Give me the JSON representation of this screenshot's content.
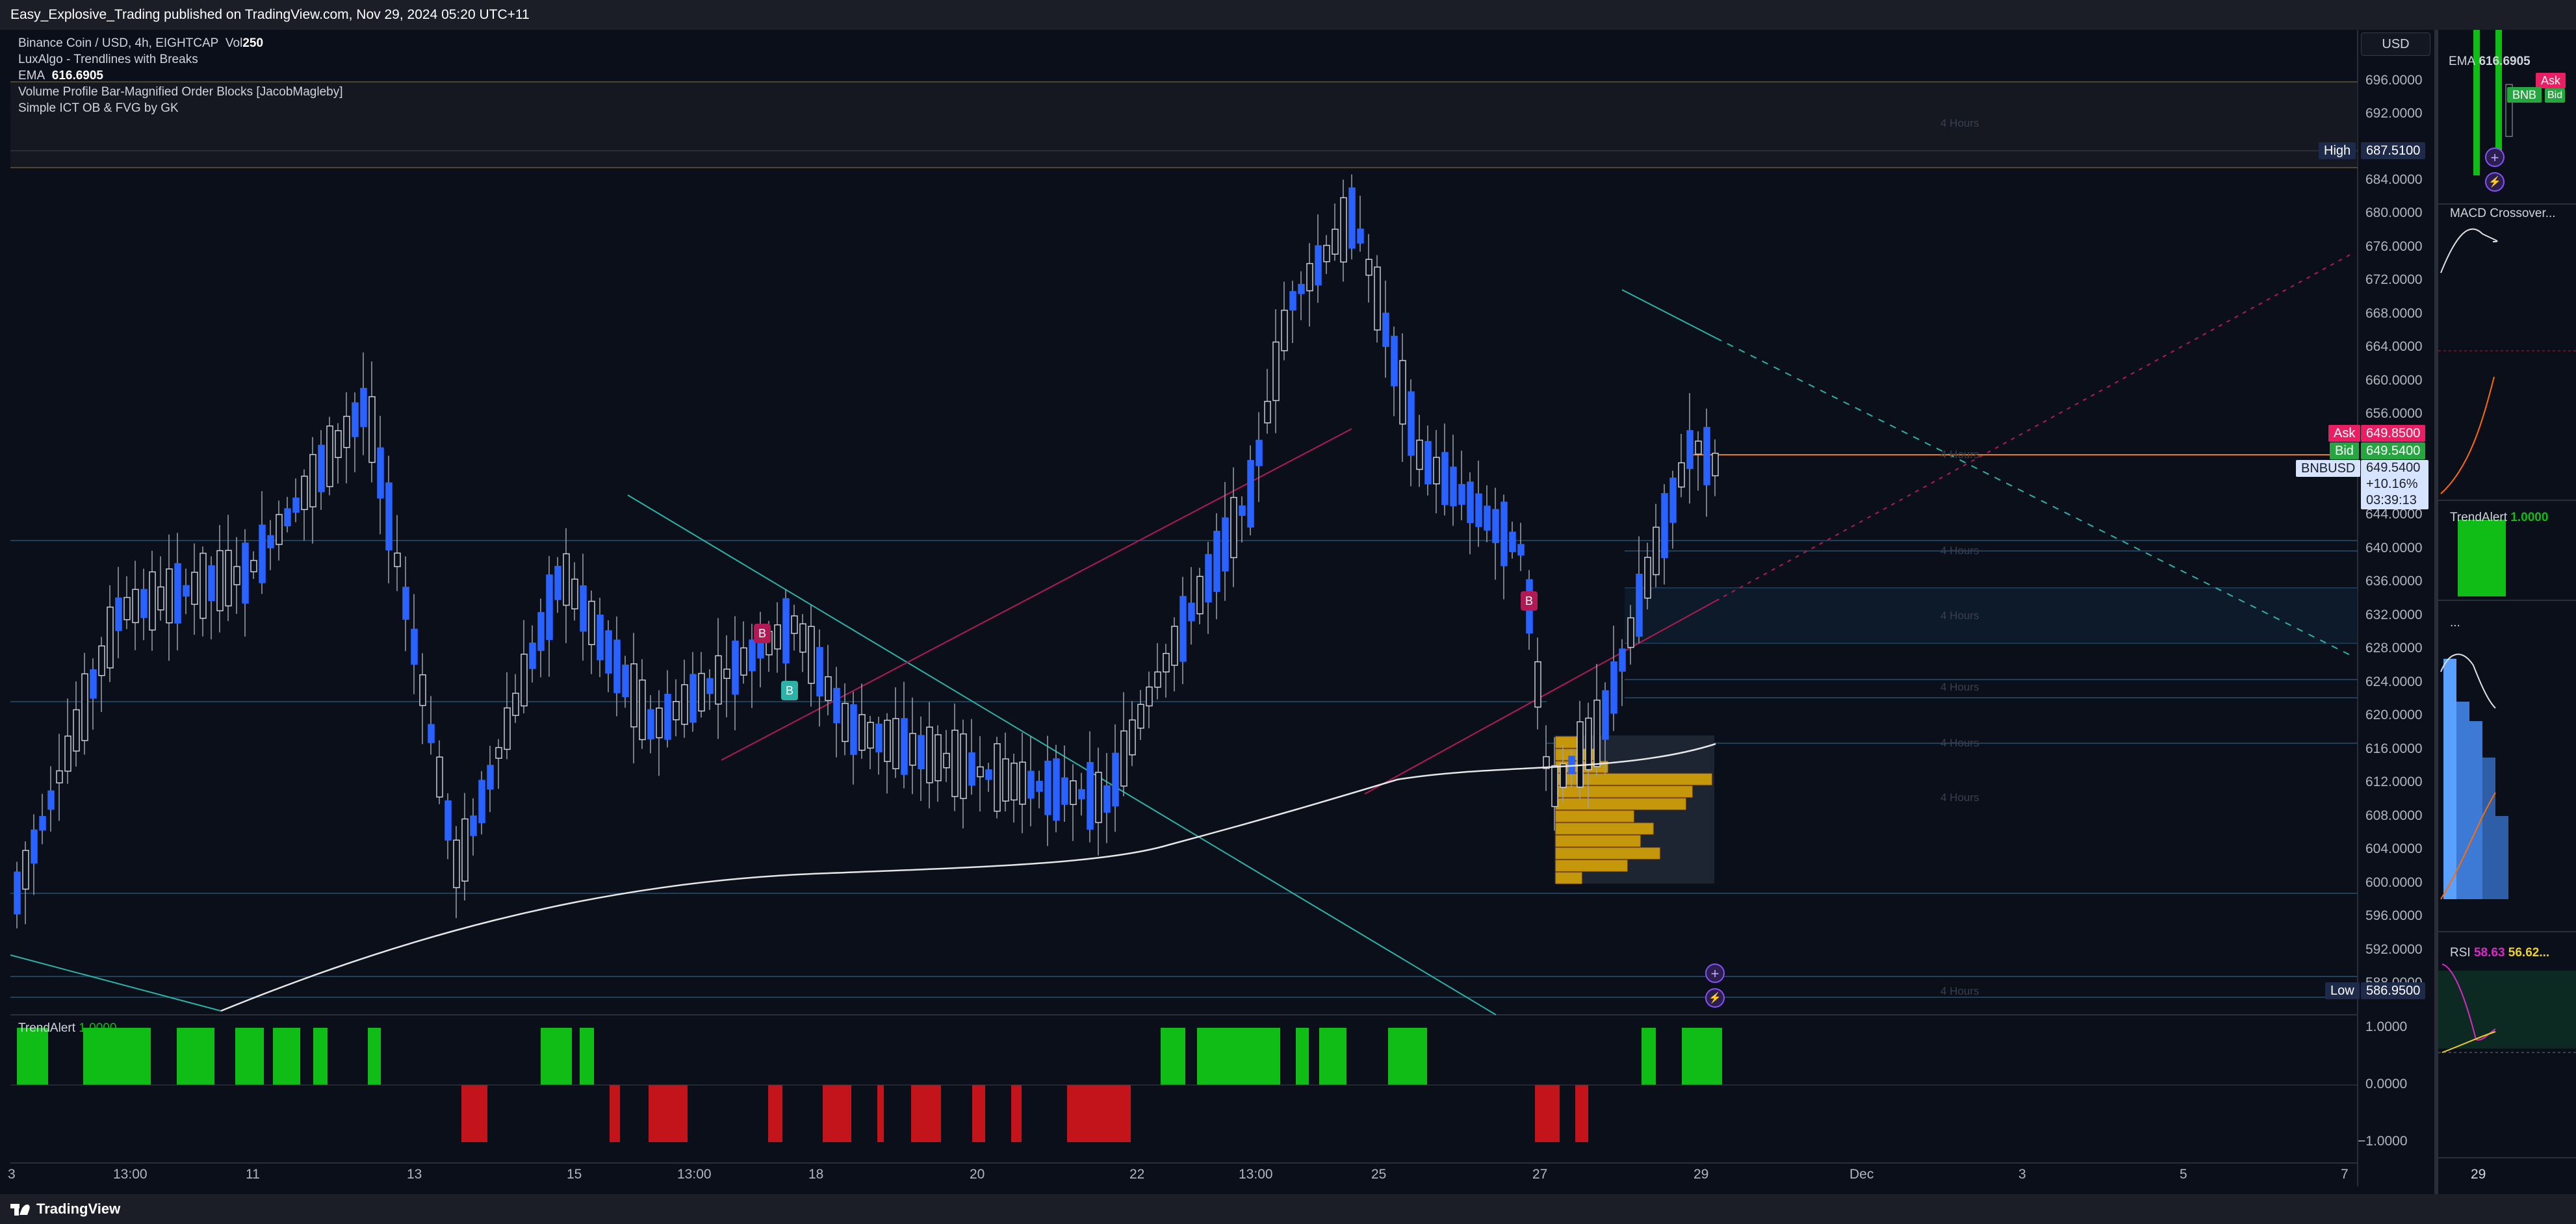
{
  "header": {
    "publisher": "Easy_Explosive_Trading published on TradingView.com, Nov 29, 2024 05:20 UTC+11"
  },
  "footer": {
    "brand": "TradingView",
    "logo_icon": "tradingview-logo-icon"
  },
  "legend": {
    "symbol": "Binance Coin / USD, 4h, EIGHTCAP",
    "vol_label": "Vol",
    "vol_value": "250",
    "ind1": "LuxAlgo - Trendlines with Breaks",
    "ema_label": "EMA",
    "ema_value": "616.6905",
    "ind3": "Volume Profile Bar-Magnified Order Blocks [JacobMagleby]",
    "ind4": "Simple ICT OB & FVG by GK"
  },
  "currency_button": "USD",
  "price_axis": {
    "ticks": [
      "696.0000",
      "692.0000",
      "684.0000",
      "680.0000",
      "676.0000",
      "672.0000",
      "668.0000",
      "664.0000",
      "660.0000",
      "656.0000",
      "644.0000",
      "640.0000",
      "636.0000",
      "632.0000",
      "628.0000",
      "624.0000",
      "620.0000",
      "616.0000",
      "612.0000",
      "608.0000",
      "604.0000",
      "600.0000",
      "596.0000",
      "592.0000",
      "588.0000"
    ],
    "high_label": "High",
    "high_value": "687.5100",
    "low_label": "Low",
    "low_value": "586.9500",
    "ask_label": "Ask",
    "ask_value": "649.8500",
    "bid_label": "Bid",
    "bid_value": "649.5400",
    "symbol_tag": "BNBUSD",
    "last_price": "649.5400",
    "change": "+10.16%",
    "countdown": "03:39:13"
  },
  "trend_axis": {
    "ticks": [
      "1.0000",
      "0.0000",
      "−1.0000"
    ],
    "label": "TrendAlert",
    "value": "1.0000"
  },
  "time_axis": [
    "3",
    "13:00",
    "11",
    "13",
    "15",
    "13:00",
    "18",
    "20",
    "22",
    "13:00",
    "25",
    "27",
    "29",
    "Dec",
    "3",
    "5",
    "7"
  ],
  "timeframe_labels": [
    "4 Hours",
    "4 Hours",
    "4 Hours",
    "4 Hours",
    "4 Hours",
    "4 Hours",
    "4 Hours",
    "4 Hours"
  ],
  "side_panel": {
    "ema_label": "EMA",
    "ema_value": "616.6905",
    "ask_tag": "Ask",
    "bid_tag": "BNB",
    "bid_tag2": "Bid",
    "macd_label": "MACD Crossover...",
    "trend_label": "TrendAlert",
    "trend_value": "1.0000",
    "dots_label": "...",
    "rsi_label": "RSI",
    "rsi_value1": "58.63",
    "rsi_value2": "56.62...",
    "time_label": "29"
  },
  "icons": {
    "plus_icon": "+",
    "bolt_icon": "⚡",
    "break_label_b": "B"
  },
  "colors": {
    "up": "#2962ff",
    "down": "#0b0f19",
    "green": "#0fbd16",
    "red": "#c4141b",
    "ask": "#e91e63",
    "bid": "#26a641",
    "ema": "#e0e0e0",
    "teal": "#26c6da",
    "magenta": "#e91e63",
    "profile": "#f5b800"
  }
}
